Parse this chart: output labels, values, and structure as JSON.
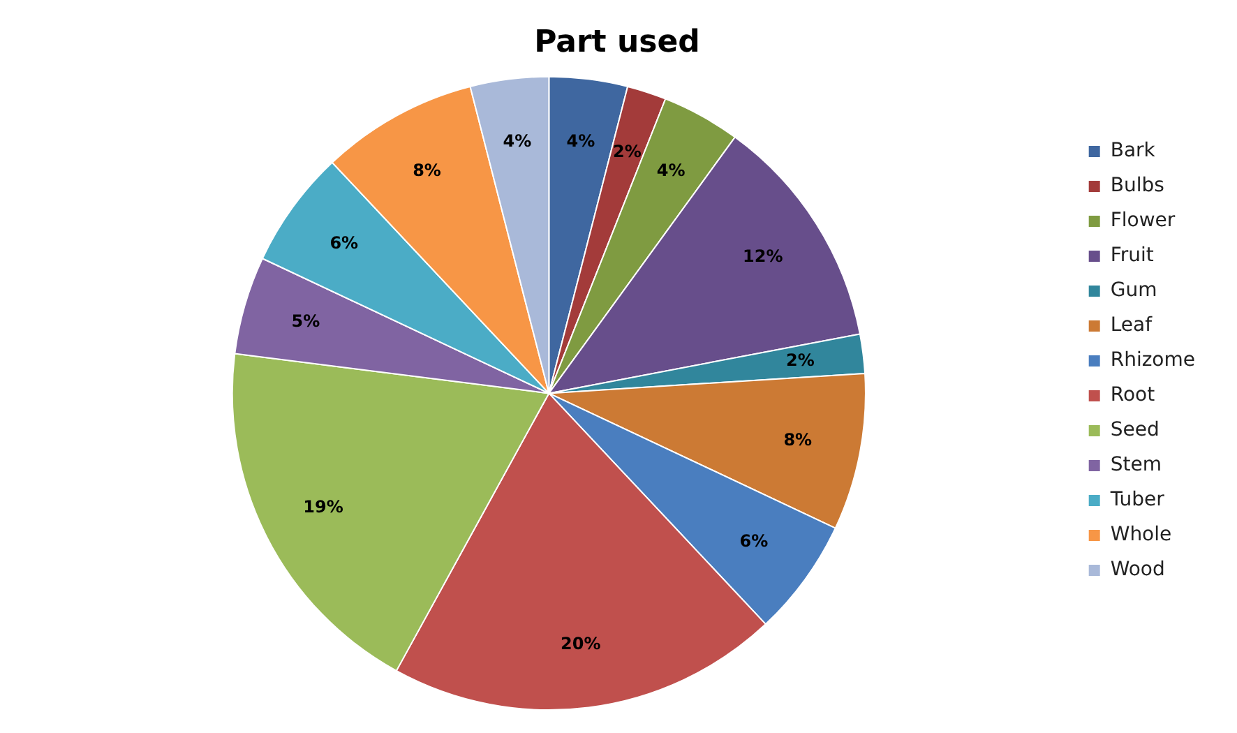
{
  "chart_data": {
    "type": "pie",
    "title": "Part used",
    "categories": [
      "Bark",
      "Bulbs",
      "Flower",
      "Fruit",
      "Gum",
      "Leaf",
      "Rhizome",
      "Root",
      "Seed",
      "Stem",
      "Tuber",
      "Whole",
      "Wood"
    ],
    "values": [
      4,
      2,
      4,
      12,
      2,
      8,
      6,
      20,
      19,
      5,
      6,
      8,
      4
    ],
    "value_labels": [
      "4%",
      "2%",
      "4%",
      "12%",
      "2%",
      "8%",
      "6%",
      "20%",
      "19%",
      "5%",
      "6%",
      "8%",
      "4%"
    ],
    "colors": [
      "#3f67a0",
      "#a33b3a",
      "#7f9b41",
      "#674e8b",
      "#31869c",
      "#cc7a34",
      "#4a7ebf",
      "#c0504d",
      "#9bbb59",
      "#8064a2",
      "#4bacc6",
      "#f79646",
      "#a9b9d9"
    ],
    "legend": "right"
  }
}
